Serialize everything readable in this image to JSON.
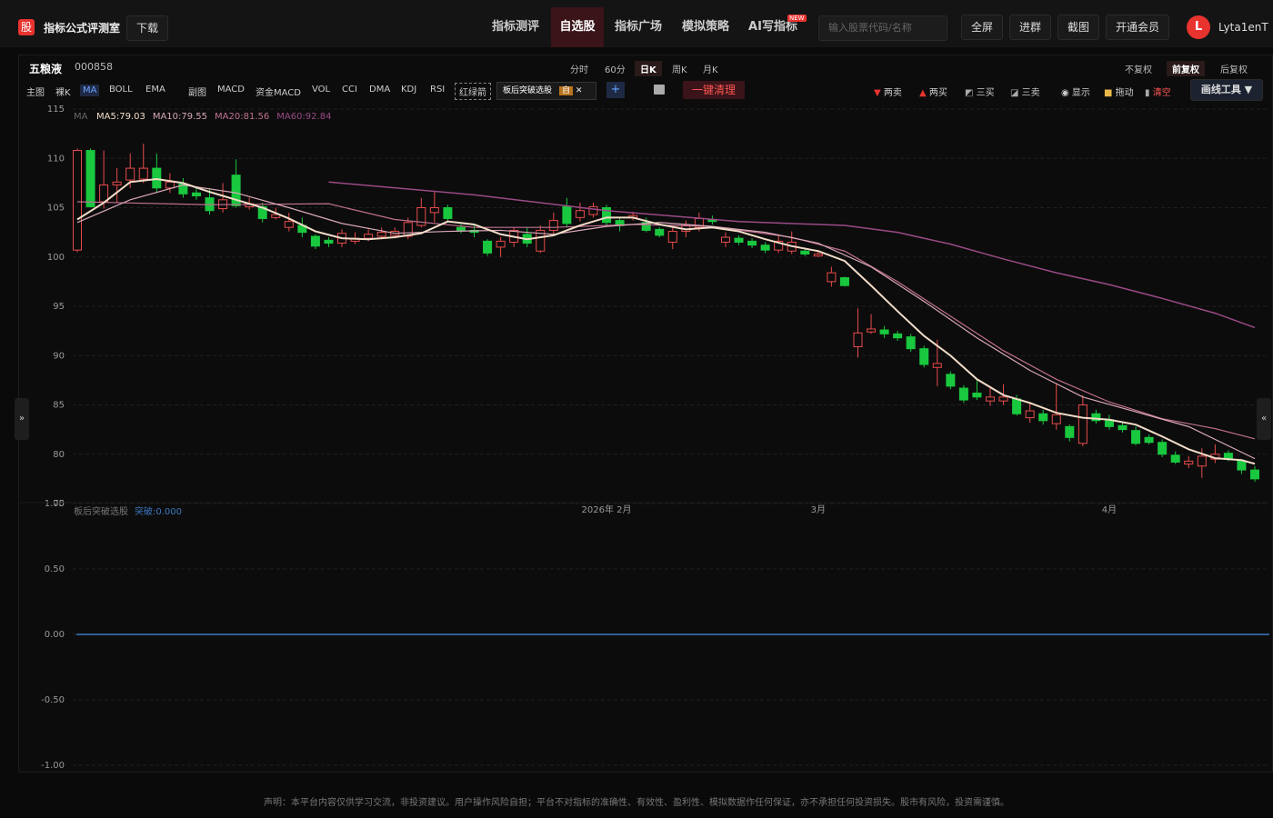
{
  "header": {
    "logo": "股",
    "app_name": "指标公式评测室",
    "download": "下载",
    "nav": [
      "指标测评",
      "自选股",
      "指标广场",
      "模拟策略",
      "AI写指标"
    ],
    "new_badge": "NEW",
    "search_placeholder": "输入股票代码/名称",
    "buttons": [
      "全屏",
      "进群",
      "截图",
      "开通会员"
    ],
    "avatar": "L",
    "username": "Lyta1enT"
  },
  "stock": {
    "name": "五粮液",
    "code": "000858",
    "periods": [
      "分时",
      "60分",
      "日K",
      "周K",
      "月K"
    ],
    "adjust": [
      "不复权",
      "前复权",
      "后复权"
    ]
  },
  "toolbar": {
    "main": [
      "主图",
      "裸K",
      "MA",
      "BOLL",
      "EMA"
    ],
    "sub": [
      "副图",
      "MACD",
      "资金MACD",
      "VOL",
      "CCI",
      "DMA",
      "KDJ",
      "RSI"
    ],
    "arrow": "红绿箭",
    "strategy": "板后突破选股",
    "strategy_tag": "自",
    "plus": "+",
    "clear": "一键清理",
    "signals": [
      "两卖",
      "两买",
      "三买",
      "三卖"
    ],
    "show": "显示",
    "drag": "拖动",
    "empty": "清空",
    "draw_tool": "画线工具 ▼"
  },
  "chart_data": [
    {
      "type": "candlestick",
      "legend_title": "MA",
      "up_color": "#e84b4b",
      "down_color": "#19c83e",
      "grid": true,
      "xlim": [
        0,
        89
      ],
      "xticks": [
        {
          "value": 40,
          "label": "2026年 2月"
        },
        {
          "value": 56,
          "label": "3月"
        },
        {
          "value": 78,
          "label": "4月"
        }
      ],
      "ylim": [
        75,
        115
      ],
      "yticks": [
        75,
        80,
        85,
        90,
        95,
        100,
        105,
        110,
        115
      ],
      "open": [
        100.7,
        110.8,
        105.6,
        107.3,
        107.8,
        107.9,
        109.0,
        107.0,
        107.4,
        106.5,
        106.0,
        104.9,
        108.3,
        105.1,
        105.1,
        104.0,
        103.0,
        103.2,
        102.1,
        101.7,
        101.4,
        101.6,
        101.9,
        102.1,
        102.2,
        102.1,
        103.2,
        104.5,
        105.0,
        103.0,
        102.7,
        101.6,
        101.0,
        101.5,
        102.3,
        100.6,
        102.7,
        105.1,
        104.0,
        104.3,
        105.0,
        103.7,
        104.0,
        103.5,
        102.8,
        101.5,
        102.6,
        103.0,
        103.8,
        101.5,
        101.9,
        101.6,
        101.2,
        100.7,
        100.6,
        100.6,
        100.1,
        97.5,
        97.9,
        90.9,
        92.4,
        92.6,
        92.2,
        91.9,
        90.7,
        88.8,
        88.1,
        86.7,
        86.2,
        85.4,
        85.4,
        85.6,
        83.7,
        84.1,
        83.1,
        82.8,
        81.1,
        84.1,
        83.5,
        82.9,
        82.4,
        81.7,
        81.2,
        79.9,
        79.0,
        78.8,
        79.5,
        80.1,
        79.3,
        78.4
      ],
      "high": [
        111,
        111,
        110.8,
        109,
        110.5,
        111.5,
        110.5,
        108.5,
        108,
        107,
        107,
        107.5,
        109.9,
        106,
        105.5,
        105,
        104.5,
        104,
        102.3,
        102,
        102.8,
        102.5,
        102.8,
        103,
        103,
        104,
        106,
        106.6,
        105.3,
        103.5,
        103.3,
        101.8,
        102,
        103,
        103,
        103.2,
        104.5,
        106,
        105.5,
        105.5,
        105.3,
        104,
        104.6,
        104,
        103,
        103,
        103.7,
        104.5,
        104.2,
        102.5,
        102.2,
        101.9,
        101.5,
        102.3,
        102.6,
        100.8,
        100.5,
        99,
        98,
        94.8,
        94.2,
        93,
        92.5,
        92.2,
        91,
        91.6,
        88.4,
        87,
        87.5,
        86.7,
        87.1,
        86,
        85.2,
        84.5,
        87.2,
        83,
        86,
        84.5,
        84,
        83.2,
        82.8,
        82,
        81.5,
        80.3,
        79.8,
        80.6,
        81,
        80.4,
        79.5,
        78.8
      ],
      "low": [
        100.5,
        105,
        104.9,
        105.5,
        107,
        107.5,
        106.5,
        106.5,
        106,
        105.8,
        104.3,
        104.5,
        105,
        104.8,
        103.5,
        103.8,
        102.6,
        102,
        100.8,
        101,
        101,
        101.3,
        101.6,
        101.8,
        101.9,
        101.8,
        103,
        103.5,
        103.5,
        102.4,
        102,
        100.1,
        100,
        101,
        101,
        100.4,
        102.3,
        103,
        103.6,
        104,
        103.2,
        102.6,
        103.7,
        102.5,
        102,
        100.8,
        102,
        102.6,
        103.3,
        101,
        101.2,
        100.9,
        100.4,
        100.4,
        100.3,
        100.1,
        100,
        97,
        97,
        89.8,
        92.2,
        91.8,
        91.5,
        90.4,
        88.8,
        86.9,
        86.6,
        85.2,
        85.5,
        84.9,
        85,
        83.9,
        83.2,
        83,
        82.5,
        81.3,
        80.8,
        83.1,
        82.5,
        82.2,
        80.9,
        81,
        79.7,
        79,
        78.6,
        77.6,
        79.1,
        79.3,
        78,
        77.2
      ],
      "close": [
        110.8,
        105.1,
        107.3,
        107.6,
        109.0,
        109.0,
        107.0,
        107.6,
        106.4,
        106.2,
        104.7,
        105.8,
        105.2,
        105.4,
        103.9,
        104.3,
        103.6,
        102.5,
        101.1,
        101.4,
        102.4,
        101.9,
        102.3,
        102.5,
        102.6,
        103.5,
        105.0,
        105.0,
        103.9,
        102.7,
        102.5,
        100.4,
        101.6,
        102.7,
        101.4,
        102.7,
        103.7,
        103.4,
        104.7,
        105.1,
        103.5,
        103.2,
        104.2,
        102.7,
        102.2,
        102.6,
        103.2,
        103.9,
        103.6,
        102.0,
        101.5,
        101.2,
        100.7,
        101.6,
        101.5,
        100.3,
        100.3,
        98.4,
        97.1,
        92.3,
        92.7,
        92.2,
        91.8,
        90.7,
        89.1,
        89.2,
        86.9,
        85.5,
        85.8,
        85.8,
        85.8,
        84.1,
        84.4,
        83.4,
        84.0,
        81.7,
        85.0,
        83.4,
        82.8,
        82.5,
        81.1,
        81.2,
        80.0,
        79.2,
        79.3,
        79.8,
        80.0,
        79.6,
        78.4,
        77.5
      ],
      "series": [
        {
          "label": "MA60:92.84",
          "color": "#9a4a86",
          "width": 1.5,
          "x": [
            19,
            30,
            40,
            50,
            58,
            62,
            66,
            70,
            74,
            78,
            82,
            86,
            89
          ],
          "values": [
            107.6,
            106.3,
            104.7,
            103.6,
            103.2,
            102.5,
            101.3,
            99.8,
            98.4,
            97.2,
            95.8,
            94.3,
            92.84
          ]
        },
        {
          "label": "MA20:81.56",
          "color": "#c07090",
          "width": 1.2,
          "x": [
            0,
            10,
            19,
            24,
            30,
            36,
            42,
            48,
            54,
            58,
            62,
            66,
            70,
            74,
            78,
            82,
            86,
            89
          ],
          "values": [
            105.6,
            105.3,
            105.4,
            103.8,
            103.0,
            103.0,
            103.3,
            103.1,
            102.0,
            100.6,
            97.5,
            94.0,
            90.5,
            87.6,
            85.3,
            83.6,
            82.6,
            81.56
          ]
        },
        {
          "label": "MA10:79.55",
          "color": "#d9a8b8",
          "width": 1.2,
          "x": [
            0,
            4,
            8,
            12,
            16,
            20,
            24,
            28,
            32,
            36,
            40,
            44,
            48,
            52,
            56,
            60,
            64,
            68,
            72,
            76,
            80,
            84,
            89
          ],
          "values": [
            103.5,
            105.8,
            107.3,
            106.5,
            105.0,
            103.4,
            102.4,
            102.6,
            102.7,
            102.3,
            103.1,
            103.5,
            103.1,
            102.5,
            101.4,
            99.0,
            95.5,
            91.8,
            88.5,
            85.8,
            84.3,
            82.8,
            79.55
          ]
        },
        {
          "label": "MA5:79.03",
          "color": "#f2dcc8",
          "width": 2,
          "x": [
            0,
            2,
            4,
            6,
            8,
            10,
            12,
            14,
            16,
            18,
            20,
            22,
            24,
            26,
            28,
            30,
            32,
            34,
            36,
            38,
            40,
            42,
            44,
            46,
            48,
            50,
            52,
            54,
            56,
            58,
            60,
            62,
            64,
            66,
            68,
            70,
            72,
            74,
            76,
            78,
            80,
            82,
            84,
            86,
            88,
            89
          ],
          "values": [
            103.8,
            105.5,
            107.6,
            107.9,
            107.5,
            106.6,
            105.8,
            105.0,
            103.9,
            102.6,
            101.9,
            101.8,
            102.0,
            102.4,
            103.6,
            103.3,
            102.3,
            101.8,
            102.2,
            103.2,
            104.0,
            104.0,
            103.3,
            102.8,
            103.0,
            102.6,
            101.8,
            101.1,
            100.6,
            99.6,
            97.1,
            94.5,
            92.0,
            90.0,
            87.6,
            86.0,
            85.2,
            84.2,
            83.7,
            83.5,
            83.0,
            81.8,
            80.5,
            79.6,
            79.4,
            79.03
          ]
        }
      ]
    },
    {
      "type": "line",
      "title": "板后突破选股",
      "grid": true,
      "ylim": [
        -1,
        1
      ],
      "yticks": [
        {
          "value": 1,
          "label": "1.00"
        },
        {
          "value": 0.5,
          "label": "0.50"
        },
        {
          "value": 0,
          "label": "0.00"
        },
        {
          "value": -0.5,
          "label": "-0.50"
        },
        {
          "value": -1,
          "label": "-1.00"
        }
      ],
      "series": [
        {
          "label": "突破:0.000",
          "color": "#3d78c0",
          "values": [
            0
          ]
        }
      ]
    }
  ],
  "footer": "声明：本平台内容仅供学习交流，非投资建议。用户操作风险自担；平台不对指标的准确性、有效性、盈利性、模拟数据作任何保证，亦不承担任何投资损失。股市有风险，投资需谨慎。"
}
